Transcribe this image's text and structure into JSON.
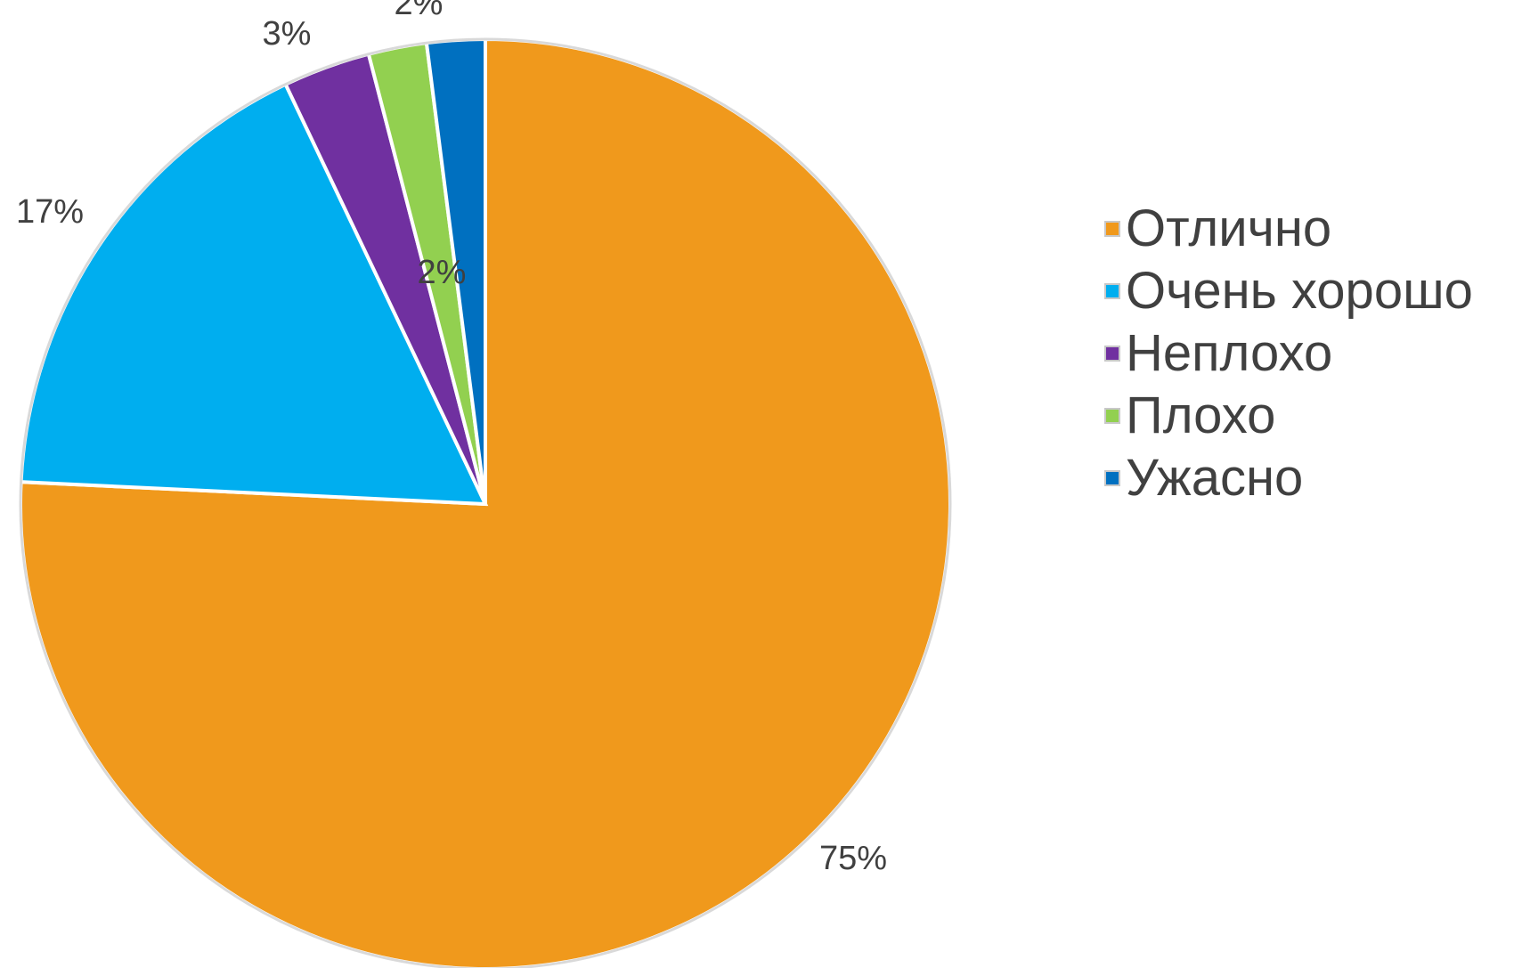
{
  "chart_data": {
    "type": "pie",
    "categories": [
      "Отлично",
      "Очень хорошо",
      "Неплохо",
      "Плохо",
      "Ужасно"
    ],
    "values": [
      75,
      17,
      3,
      2,
      2
    ],
    "data_labels": [
      "75%",
      "17%",
      "3%",
      "2%",
      "2%"
    ],
    "colors": [
      "#F0991C",
      "#00AEEF",
      "#7030A0",
      "#92D050",
      "#0070C0"
    ],
    "legend_placement": "right",
    "start_angle": "12 o'clock",
    "direction": "clockwise"
  }
}
